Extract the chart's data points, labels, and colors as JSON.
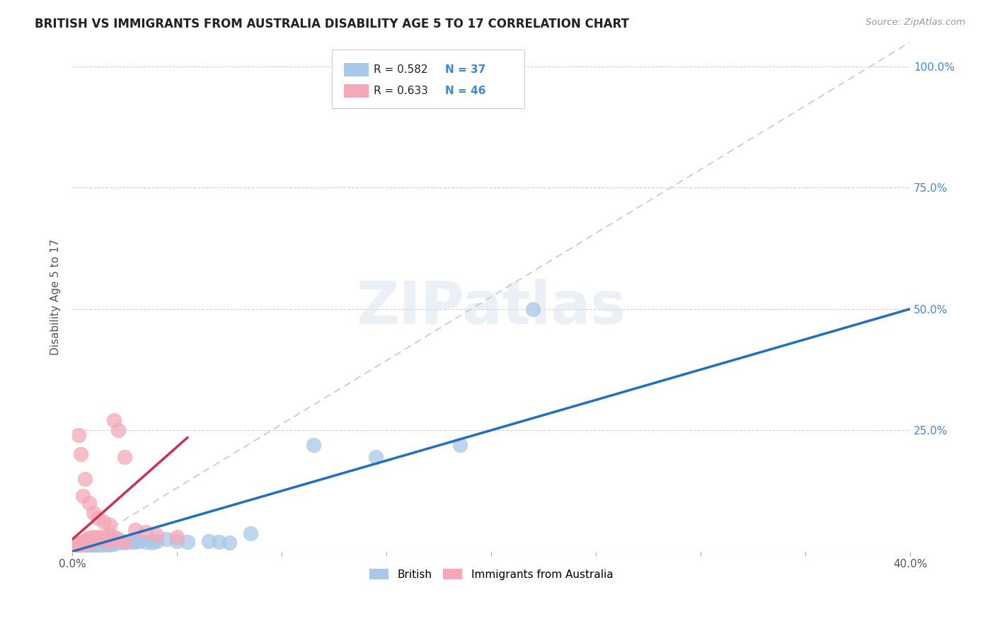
{
  "title": "BRITISH VS IMMIGRANTS FROM AUSTRALIA DISABILITY AGE 5 TO 17 CORRELATION CHART",
  "source": "Source: ZipAtlas.com",
  "ylabel": "Disability Age 5 to 17",
  "watermark": "ZIPatlas",
  "xlim": [
    0.0,
    0.4
  ],
  "ylim": [
    0.0,
    1.05
  ],
  "xticks": [
    0.0,
    0.05,
    0.1,
    0.15,
    0.2,
    0.25,
    0.3,
    0.35,
    0.4
  ],
  "xtick_labels_show": {
    "0.0": "0.0%",
    "0.40": "40.0%"
  },
  "yticks": [
    0.0,
    0.25,
    0.5,
    0.75,
    1.0
  ],
  "ytick_labels": [
    "",
    "25.0%",
    "50.0%",
    "75.0%",
    "100.0%"
  ],
  "british_R": 0.582,
  "british_N": 37,
  "australia_R": 0.633,
  "australia_N": 46,
  "british_color": "#a8c8e8",
  "australia_color": "#f4a8b8",
  "british_line_color": "#2070c0",
  "australia_line_color": "#d03050",
  "trend_line_color": "#c8c8c8",
  "british_scatter": [
    [
      0.001,
      0.003
    ],
    [
      0.002,
      0.005
    ],
    [
      0.003,
      0.005
    ],
    [
      0.004,
      0.004
    ],
    [
      0.005,
      0.006
    ],
    [
      0.005,
      0.01
    ],
    [
      0.006,
      0.005
    ],
    [
      0.007,
      0.008
    ],
    [
      0.008,
      0.007
    ],
    [
      0.009,
      0.01
    ],
    [
      0.01,
      0.008
    ],
    [
      0.01,
      0.012
    ],
    [
      0.012,
      0.01
    ],
    [
      0.013,
      0.012
    ],
    [
      0.015,
      0.015
    ],
    [
      0.016,
      0.012
    ],
    [
      0.018,
      0.015
    ],
    [
      0.02,
      0.015
    ],
    [
      0.022,
      0.018
    ],
    [
      0.025,
      0.018
    ],
    [
      0.028,
      0.02
    ],
    [
      0.03,
      0.02
    ],
    [
      0.032,
      0.022
    ],
    [
      0.035,
      0.02
    ],
    [
      0.038,
      0.018
    ],
    [
      0.04,
      0.022
    ],
    [
      0.045,
      0.025
    ],
    [
      0.05,
      0.022
    ],
    [
      0.055,
      0.02
    ],
    [
      0.065,
      0.022
    ],
    [
      0.07,
      0.02
    ],
    [
      0.075,
      0.018
    ],
    [
      0.085,
      0.038
    ],
    [
      0.115,
      0.22
    ],
    [
      0.145,
      0.195
    ],
    [
      0.185,
      0.22
    ],
    [
      0.22,
      0.5
    ]
  ],
  "australia_scatter": [
    [
      0.001,
      0.003
    ],
    [
      0.002,
      0.005
    ],
    [
      0.002,
      0.01
    ],
    [
      0.003,
      0.008
    ],
    [
      0.003,
      0.015
    ],
    [
      0.004,
      0.01
    ],
    [
      0.004,
      0.018
    ],
    [
      0.005,
      0.012
    ],
    [
      0.005,
      0.02
    ],
    [
      0.006,
      0.015
    ],
    [
      0.006,
      0.022
    ],
    [
      0.007,
      0.018
    ],
    [
      0.007,
      0.025
    ],
    [
      0.008,
      0.02
    ],
    [
      0.008,
      0.028
    ],
    [
      0.009,
      0.022
    ],
    [
      0.01,
      0.025
    ],
    [
      0.01,
      0.03
    ],
    [
      0.011,
      0.022
    ],
    [
      0.012,
      0.028
    ],
    [
      0.013,
      0.03
    ],
    [
      0.014,
      0.025
    ],
    [
      0.015,
      0.028
    ],
    [
      0.016,
      0.025
    ],
    [
      0.017,
      0.03
    ],
    [
      0.018,
      0.022
    ],
    [
      0.018,
      0.035
    ],
    [
      0.02,
      0.03
    ],
    [
      0.022,
      0.025
    ],
    [
      0.025,
      0.02
    ],
    [
      0.005,
      0.115
    ],
    [
      0.008,
      0.1
    ],
    [
      0.01,
      0.08
    ],
    [
      0.012,
      0.07
    ],
    [
      0.015,
      0.06
    ],
    [
      0.018,
      0.055
    ],
    [
      0.02,
      0.27
    ],
    [
      0.022,
      0.25
    ],
    [
      0.003,
      0.24
    ],
    [
      0.004,
      0.2
    ],
    [
      0.006,
      0.15
    ],
    [
      0.025,
      0.195
    ],
    [
      0.03,
      0.045
    ],
    [
      0.035,
      0.04
    ],
    [
      0.04,
      0.035
    ],
    [
      0.05,
      0.03
    ]
  ],
  "legend_label_british": "British",
  "legend_label_australia": "Immigrants from Australia"
}
